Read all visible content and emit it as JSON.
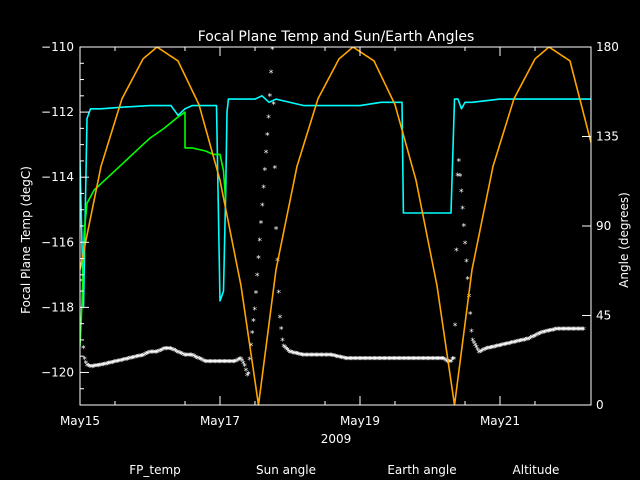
{
  "chart_data": {
    "type": "line",
    "title": "Focal Plane Temp and Sun/Earth Angles",
    "xlabel": "2009",
    "ylabel": "Focal Plane Temp (degC)",
    "y2label": "Angle (degrees)",
    "xlim": [
      0,
      7.3
    ],
    "ylim": [
      -121,
      -110
    ],
    "y2lim": [
      0,
      180
    ],
    "x_ticks": [
      {
        "value": 0,
        "label": "May15"
      },
      {
        "value": 2,
        "label": "May17"
      },
      {
        "value": 4,
        "label": "May19"
      },
      {
        "value": 6,
        "label": "May21"
      }
    ],
    "y_ticks": [
      -110,
      -112,
      -114,
      -116,
      -118,
      -120
    ],
    "y_tick_labels": [
      "−110",
      "−112",
      "−114",
      "−116",
      "−118",
      "−120"
    ],
    "y2_ticks": [
      0,
      45,
      90,
      135,
      180
    ],
    "y2_tick_labels": [
      "0",
      "45",
      "90",
      "135",
      "180"
    ],
    "legend": [
      {
        "label": "FP_temp",
        "color": "#ffffff"
      },
      {
        "label": "Sun angle",
        "color": "#00ffff"
      },
      {
        "label": "Earth angle",
        "color": "#00ff00"
      },
      {
        "label": "Altitude",
        "color": "#ffa500"
      }
    ],
    "series": [
      {
        "name": "FP_temp",
        "axis": "left",
        "color": "#ffffff",
        "marker": "asterisk",
        "x": [
          0.03,
          0.05,
          0.08,
          0.1,
          0.15,
          0.3,
          0.5,
          0.7,
          0.9,
          1.0,
          1.1,
          1.2,
          1.3,
          1.4,
          1.5,
          1.6,
          1.7,
          1.8,
          1.9,
          2.0,
          2.1,
          2.2,
          2.3,
          2.35,
          2.4,
          2.45,
          2.5,
          2.55,
          2.6,
          2.65,
          2.7,
          2.75,
          2.8,
          2.85,
          2.9,
          3.0,
          3.2,
          3.4,
          3.6,
          3.8,
          4.0,
          4.2,
          4.4,
          4.6,
          4.8,
          5.0,
          5.05,
          5.1,
          5.15,
          5.2,
          5.25,
          5.3,
          5.32,
          5.35,
          5.4,
          5.45,
          5.5,
          5.55,
          5.6,
          5.7,
          5.8,
          6.0,
          6.2,
          6.4,
          6.6,
          6.8,
          7.0,
          7.2
        ],
        "y": [
          -117.2,
          -119.5,
          -119.7,
          -119.8,
          -119.85,
          -119.8,
          -119.7,
          -119.6,
          -119.5,
          -119.4,
          -119.4,
          -119.3,
          -119.3,
          -119.4,
          -119.5,
          -119.5,
          -119.6,
          -119.7,
          -119.7,
          -119.7,
          -119.7,
          -119.7,
          -119.6,
          -119.8,
          -120.2,
          -119.0,
          -118.0,
          -116.5,
          -115.0,
          -113.5,
          -112.0,
          -110.0,
          -115.5,
          -118.2,
          -119.2,
          -119.4,
          -119.5,
          -119.5,
          -119.5,
          -119.6,
          -119.6,
          -119.6,
          -119.6,
          -119.6,
          -119.6,
          -119.6,
          -119.6,
          -119.6,
          -119.6,
          -119.6,
          -119.7,
          -119.7,
          -119.6,
          -119.6,
          -113.2,
          -114.5,
          -116.0,
          -117.5,
          -119.0,
          -119.4,
          -119.3,
          -119.2,
          -119.1,
          -119.0,
          -118.8,
          -118.7,
          -118.7,
          -118.7
        ]
      },
      {
        "name": "Sun angle",
        "axis": "left",
        "color": "#00ffff",
        "marker": "line",
        "x": [
          0.0,
          0.05,
          0.1,
          0.15,
          0.3,
          0.6,
          1.0,
          1.3,
          1.4,
          1.5,
          1.6,
          1.8,
          1.95,
          2.0,
          2.05,
          2.08,
          2.1,
          2.12,
          2.2,
          2.5,
          2.6,
          2.7,
          2.8,
          3.2,
          3.5,
          4.0,
          4.3,
          4.6,
          4.62,
          4.8,
          5.0,
          5.3,
          5.35,
          5.4,
          5.45,
          5.5,
          5.6,
          6.0,
          6.5,
          7.0,
          7.3
        ],
        "y": [
          -113.5,
          -118.0,
          -112.2,
          -111.9,
          -111.9,
          -111.85,
          -111.8,
          -111.8,
          -112.1,
          -111.9,
          -111.8,
          -111.8,
          -111.8,
          -117.8,
          -117.5,
          -114.6,
          -112.0,
          -111.6,
          -111.6,
          -111.6,
          -111.5,
          -111.7,
          -111.6,
          -111.8,
          -111.8,
          -111.8,
          -111.7,
          -111.7,
          -115.1,
          -115.1,
          -115.1,
          -115.1,
          -111.6,
          -111.6,
          -111.9,
          -111.7,
          -111.7,
          -111.6,
          -111.6,
          -111.6,
          -111.6
        ]
      },
      {
        "name": "Earth angle",
        "axis": "left",
        "color": "#00ff00",
        "marker": "line",
        "x": [
          0.0,
          0.03,
          0.06,
          0.1,
          0.2,
          0.4,
          0.6,
          0.8,
          1.0,
          1.2,
          1.4,
          1.5,
          1.5,
          1.6,
          1.8,
          1.9,
          2.0,
          2.05,
          2.08
        ],
        "y": [
          -119.2,
          -117.8,
          -115.7,
          -114.8,
          -114.4,
          -114.0,
          -113.6,
          -113.2,
          -112.8,
          -112.5,
          -112.15,
          -112.0,
          -113.1,
          -113.1,
          -113.2,
          -113.3,
          -113.3,
          -113.8,
          -114.7
        ]
      },
      {
        "name": "Altitude",
        "axis": "right",
        "color": "#ffa500",
        "marker": "line",
        "model": "parabolic arches peaking at 180 near May16.1, May18.9 and May21.7, touching 0 near May17.5 and May20.3",
        "x": [
          0.0,
          0.3,
          0.6,
          0.9,
          1.1,
          1.4,
          1.7,
          2.0,
          2.3,
          2.55,
          2.8,
          3.1,
          3.4,
          3.7,
          3.9,
          4.2,
          4.5,
          4.8,
          5.1,
          5.35,
          5.6,
          5.9,
          6.2,
          6.5,
          6.7,
          7.0,
          7.3
        ],
        "y": [
          68,
          120,
          154,
          174,
          180,
          173,
          151,
          113,
          60,
          0,
          68,
          120,
          154,
          174,
          180,
          173,
          151,
          113,
          60,
          0,
          68,
          120,
          154,
          174,
          180,
          173,
          132
        ]
      }
    ]
  }
}
